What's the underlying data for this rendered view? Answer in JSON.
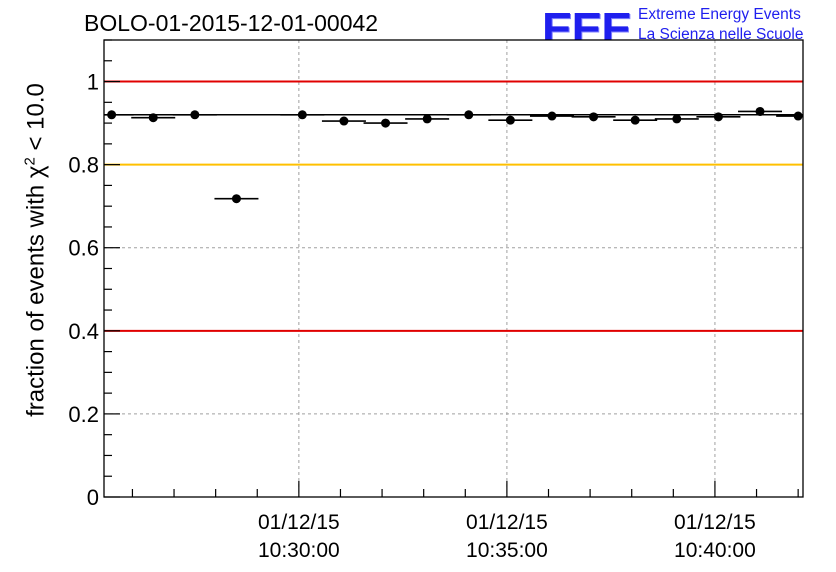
{
  "title": "BOLO-01-2015-12-01-00042",
  "logo": {
    "mark": "EEE",
    "line1": "Extreme Energy Events",
    "line2": "La Scienza nelle Scuole"
  },
  "chart_data": {
    "type": "scatter",
    "title": "BOLO-01-2015-12-01-00042",
    "xlabel": "",
    "ylabel": {
      "prefix": "fraction of events with ",
      "symbol": "χ",
      "sup": "2",
      "suffix": " < 10.0"
    },
    "x_unit": "minutes",
    "xlim": [
      "10:25:19",
      "10:42:07"
    ],
    "ylim": [
      0,
      1.1
    ],
    "yticks": [
      0,
      0.2,
      0.4,
      0.6,
      0.8,
      1
    ],
    "ytick_labels": [
      "0",
      "0.2",
      "0.4",
      "0.6",
      "0.8",
      "1"
    ],
    "xticks": [
      {
        "time": "10:30:00",
        "date_label": "01/12/15",
        "time_label": "10:30:00"
      },
      {
        "time": "10:35:00",
        "date_label": "01/12/15",
        "time_label": "10:35:00"
      },
      {
        "time": "10:40:00",
        "date_label": "01/12/15",
        "time_label": "10:40:00"
      }
    ],
    "grid": true,
    "reference_lines": [
      {
        "y": 1.0,
        "color": "#e00000"
      },
      {
        "y": 0.8,
        "color": "#ffc000"
      },
      {
        "y": 0.4,
        "color": "#e00000"
      }
    ],
    "baseline": {
      "y": 0.92,
      "color": "#000000"
    },
    "points": [
      {
        "x": "10:25:30",
        "y": 0.92
      },
      {
        "x": "10:26:30",
        "y": 0.913
      },
      {
        "x": "10:27:30",
        "y": 0.92
      },
      {
        "x": "10:28:30",
        "y": 0.718
      },
      {
        "x": "10:30:05",
        "y": 0.92
      },
      {
        "x": "10:31:05",
        "y": 0.905
      },
      {
        "x": "10:32:05",
        "y": 0.9
      },
      {
        "x": "10:33:05",
        "y": 0.91
      },
      {
        "x": "10:34:05",
        "y": 0.92
      },
      {
        "x": "10:35:05",
        "y": 0.907
      },
      {
        "x": "10:36:05",
        "y": 0.917
      },
      {
        "x": "10:37:05",
        "y": 0.915
      },
      {
        "x": "10:38:05",
        "y": 0.907
      },
      {
        "x": "10:39:05",
        "y": 0.91
      },
      {
        "x": "10:40:05",
        "y": 0.915
      },
      {
        "x": "10:41:05",
        "y": 0.928
      },
      {
        "x": "10:42:00",
        "y": 0.917
      }
    ],
    "colors": {
      "points": "#000000",
      "grid": "#a0a0a0"
    }
  }
}
